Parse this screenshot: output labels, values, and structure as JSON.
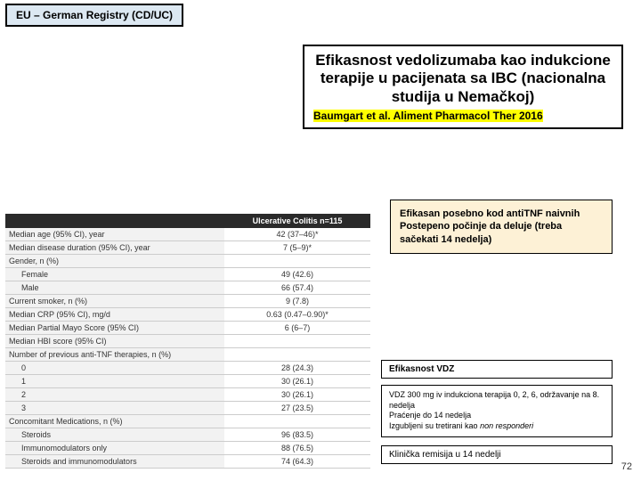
{
  "tag": "EU – German Registry (CD/UC)",
  "title": {
    "main": "Efikasnost vedolizumaba kao indukcione terapije u pacijenata sa IBC (nacionalna studija u Nemačkoj)",
    "sub": "Baumgart et al. Aliment Pharmacol Ther 2016"
  },
  "table": {
    "header_col2": "Ulcerative Colitis n=115",
    "rows": [
      {
        "label": "Median age (95% CI), year",
        "value": "42 (37–46)*",
        "indent": false
      },
      {
        "label": "Median disease duration (95% CI), year",
        "value": "7 (5–9)*",
        "indent": false
      },
      {
        "label": "Gender, n (%)",
        "value": "",
        "indent": false
      },
      {
        "label": "Female",
        "value": "49 (42.6)",
        "indent": true
      },
      {
        "label": "Male",
        "value": "66 (57.4)",
        "indent": true
      },
      {
        "label": "Current smoker, n (%)",
        "value": "9 (7.8)",
        "indent": false
      },
      {
        "label": "Median CRP (95% CI), mg/d",
        "value": "0.63 (0.47–0.90)*",
        "indent": false
      },
      {
        "label": "Median Partial Mayo Score (95% CI)",
        "value": "6 (6–7)",
        "indent": false
      },
      {
        "label": "Median HBI score (95% CI)",
        "value": "",
        "indent": false
      },
      {
        "label": "Number of previous anti-TNF therapies, n (%)",
        "value": "",
        "indent": false
      },
      {
        "label": "0",
        "value": "28 (24.3)",
        "indent": true
      },
      {
        "label": "1",
        "value": "30 (26.1)",
        "indent": true
      },
      {
        "label": "2",
        "value": "30 (26.1)",
        "indent": true
      },
      {
        "label": "3",
        "value": "27 (23.5)",
        "indent": true
      },
      {
        "label": "Concomitant Medications, n (%)",
        "value": "",
        "indent": false
      },
      {
        "label": "Steroids",
        "value": "96 (83.5)",
        "indent": true
      },
      {
        "label": "Immunomodulators only",
        "value": "88 (76.5)",
        "indent": true
      },
      {
        "label": "Steroids and immunomodulators",
        "value": "74 (64.3)",
        "indent": true
      }
    ]
  },
  "note": {
    "line1": "Efikasan posebno kod antiTNF naivnih",
    "line2": "Postepeno počinje da deluje (treba sačekati 14 nedelja)"
  },
  "eff": "Efikasnost VDZ",
  "study": {
    "l1": "VDZ 300 mg iv indukciona terapija 0, 2, 6, održavanje na 8. nedelja",
    "l2": "Praćenje do 14 nedelja",
    "l3a": "Izgubljeni su tretirani kao ",
    "l3b": "non responderi"
  },
  "remission": "Klinička remisija u 14 nedelji",
  "pagenum": "72"
}
